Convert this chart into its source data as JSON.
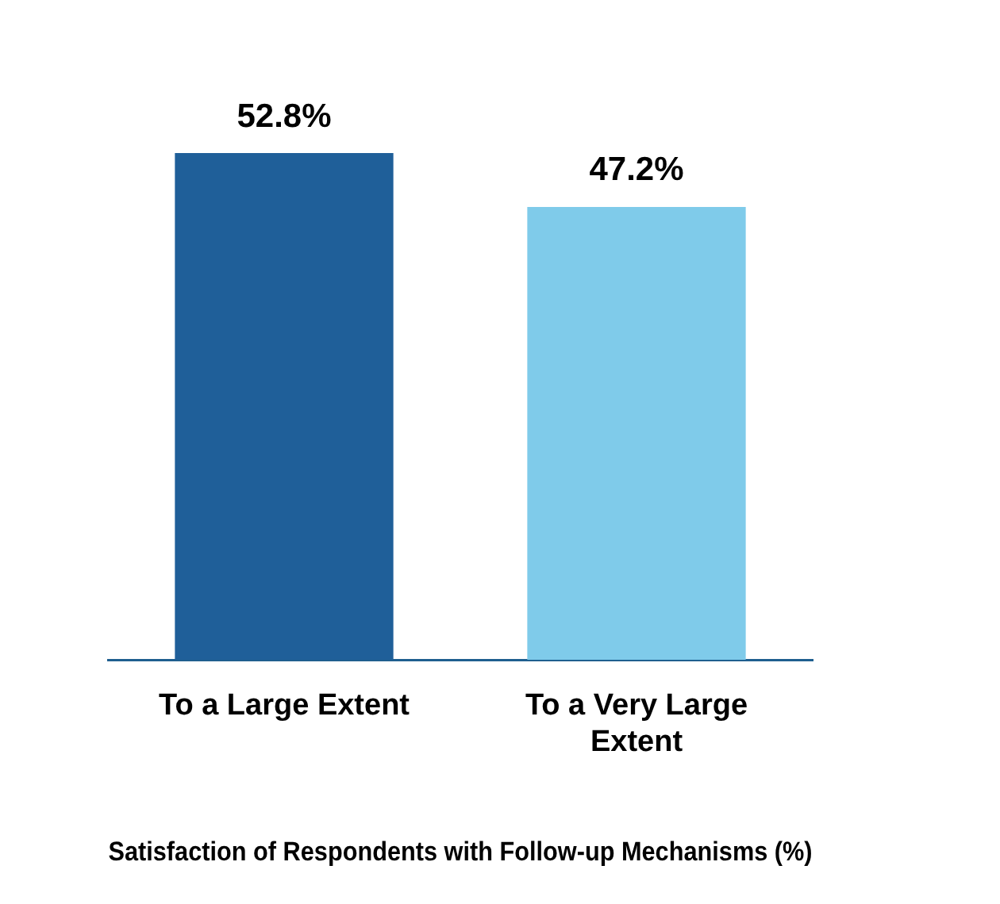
{
  "chart_data": {
    "type": "bar",
    "xlabel": "Satisfaction of Respondents with Follow-up Mechanisms (%)",
    "categories": [
      "To a Large Extent",
      "To a Very Large Extent"
    ],
    "values": [
      52.8,
      47.2
    ],
    "colors": [
      "#1f5f99",
      "#7fcbea"
    ],
    "data_labels": true,
    "value_labels": [
      "52.8%",
      "47.2%"
    ],
    "grid": false,
    "legend": false
  }
}
